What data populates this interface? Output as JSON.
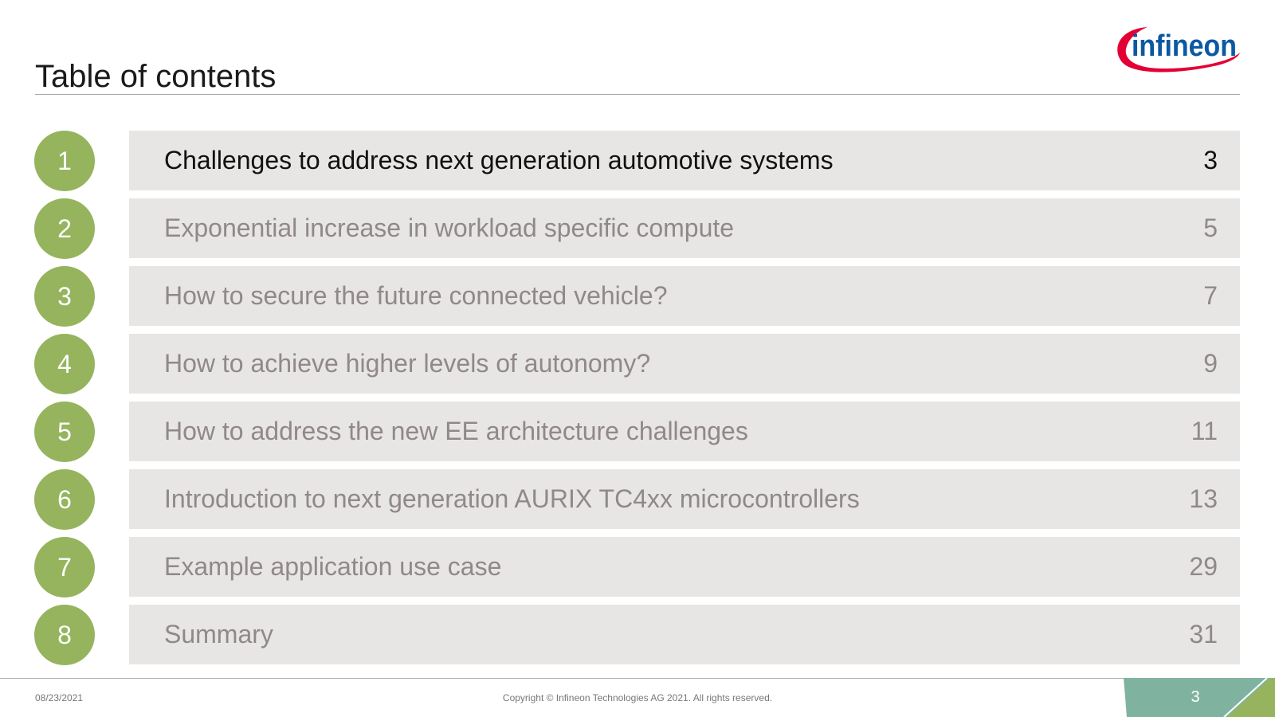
{
  "title": "Table of contents",
  "brand": {
    "logo_text": "infineon",
    "logo_color": "#0a59a3",
    "swoosh_color": "#e30034"
  },
  "colors": {
    "circle": "#95b45d",
    "bar": "#e7e6e5",
    "inactive_text": "#918888",
    "active_text": "#111111",
    "footer_teal": "#7fb39f",
    "footer_green": "#95b45d"
  },
  "toc": {
    "items": [
      {
        "number": "1",
        "label": "Challenges to address next generation automotive systems",
        "page": "3",
        "active": true
      },
      {
        "number": "2",
        "label": "Exponential increase in workload specific compute",
        "page": "5",
        "active": false
      },
      {
        "number": "3",
        "label": "How to secure the future connected vehicle?",
        "page": "7",
        "active": false
      },
      {
        "number": "4",
        "label": "How to achieve higher levels of autonomy?",
        "page": "9",
        "active": false
      },
      {
        "number": "5",
        "label": "How to address the new EE architecture challenges",
        "page": "11",
        "active": false
      },
      {
        "number": "6",
        "label": "Introduction to next generation AURIX TC4xx microcontrollers",
        "page": "13",
        "active": false
      },
      {
        "number": "7",
        "label": "Example application use case",
        "page": "29",
        "active": false
      },
      {
        "number": "8",
        "label": "Summary",
        "page": "31",
        "active": false
      }
    ]
  },
  "footer": {
    "date": "08/23/2021",
    "copyright": "Copyright © Infineon Technologies AG 2021. All rights reserved.",
    "page_number": "3"
  }
}
